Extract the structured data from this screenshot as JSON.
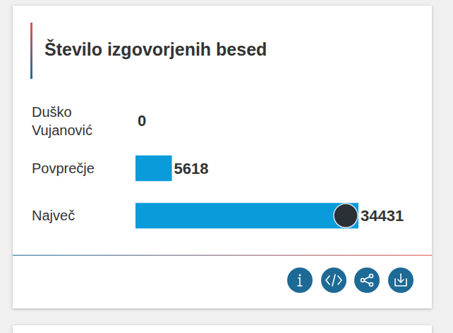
{
  "chart_data": {
    "type": "bar",
    "title": "Število izgovorjenih besed",
    "categories": [
      "Duško Vujanović",
      "Povprečje",
      "Največ"
    ],
    "values": [
      0,
      5618,
      34431
    ],
    "color": "#0a9bdb",
    "orientation": "horizontal",
    "data_labels": true,
    "xlim": [
      0,
      34431
    ],
    "tick_labels": "y"
  }
}
